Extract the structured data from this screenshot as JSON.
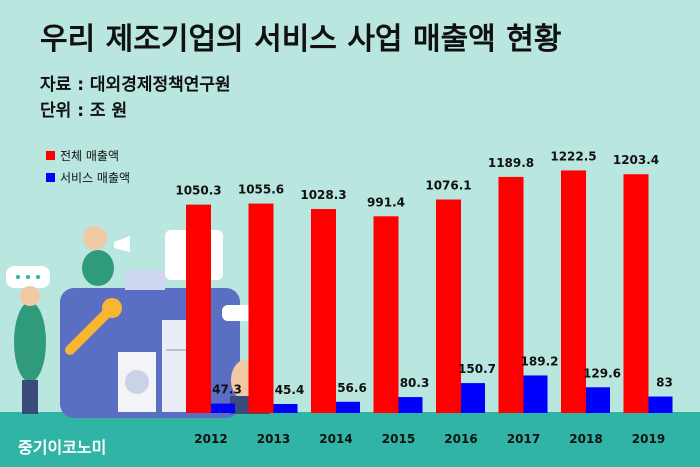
{
  "title": "우리 제조기업의 서비스 사업 매출액 현황",
  "source": "자료 : 대외경제정책연구원",
  "unit": "단위 : 조 원",
  "brand": "중기이코노미",
  "chart_data": {
    "type": "bar",
    "categories": [
      "2012",
      "2013",
      "2014",
      "2015",
      "2016",
      "2017",
      "2018",
      "2019"
    ],
    "series": [
      {
        "name": "전체 매출액",
        "color": "#ff0000",
        "values": [
          1050.3,
          1055.6,
          1028.3,
          991.4,
          1076.1,
          1189.8,
          1222.5,
          1203.4
        ]
      },
      {
        "name": "서비스 매출액",
        "color": "#0000ff",
        "values": [
          47.3,
          45.4,
          56.6,
          80.3,
          150.7,
          189.2,
          129.6,
          83
        ]
      }
    ],
    "ylim": [
      0,
      1250
    ],
    "legend": "top-left",
    "grid": false
  }
}
